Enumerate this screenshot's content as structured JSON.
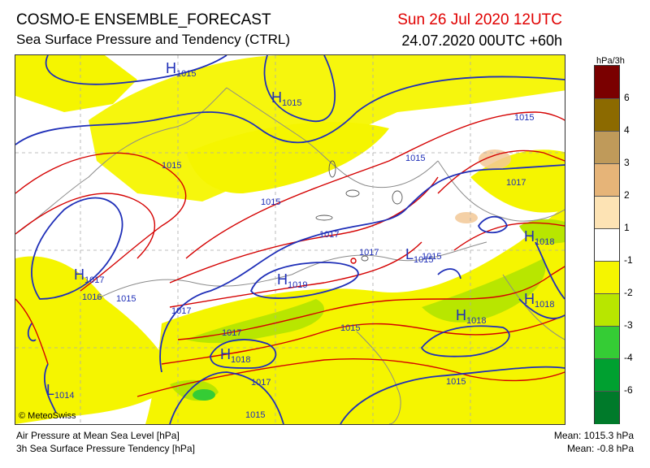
{
  "header": {
    "title": "COSMO-E ENSEMBLE_FORECAST",
    "subtitle": "Sea Surface Pressure and Tendency (CTRL)",
    "valid_time": "Sun 26 Jul 2020 12UTC",
    "run_time": "24.07.2020 00UTC +60h"
  },
  "legend": {
    "unit": "hPa/3h",
    "bins": [
      {
        "label": "6",
        "color": "#7a0000"
      },
      {
        "label": "4",
        "color": "#8c6a00"
      },
      {
        "label": "3",
        "color": "#bf9a5a"
      },
      {
        "label": "2",
        "color": "#e6b478"
      },
      {
        "label": "1",
        "color": "#fde3b4"
      },
      {
        "label": "-1",
        "color": "#ffffff"
      },
      {
        "label": "-2",
        "color": "#f5f500"
      },
      {
        "label": "-3",
        "color": "#b8e600"
      },
      {
        "label": "-4",
        "color": "#35cc35"
      },
      {
        "label": "-6",
        "color": "#00a030"
      },
      {
        "label": "",
        "color": "#007a2a"
      }
    ]
  },
  "map": {
    "copyright": "© MeteoSwiss",
    "labels": [
      {
        "text": "H",
        "sub": "1015",
        "color": "#1f2fb8"
      },
      {
        "text": "H",
        "sub": "1015",
        "color": "#1f2fb8"
      },
      {
        "text": "H",
        "sub": "1017",
        "color": "#1f2fb8"
      },
      {
        "text": "H",
        "sub": "1019",
        "color": "#1f2fb8"
      },
      {
        "text": "H",
        "sub": "1018",
        "color": "#1f2fb8"
      },
      {
        "text": "H",
        "sub": "1018",
        "color": "#1f2fb8"
      },
      {
        "text": "H",
        "sub": "1018",
        "color": "#1f2fb8"
      },
      {
        "text": "H",
        "sub": "1018",
        "color": "#1f2fb8"
      },
      {
        "text": "L",
        "sub": "1014",
        "color": "#1f2fb8"
      },
      {
        "text": "L",
        "sub": "1015",
        "color": "#1f2fb8"
      }
    ],
    "isobar_labels": [
      "1015",
      "1015",
      "1015",
      "1017",
      "1016",
      "1015",
      "1017",
      "1017",
      "1017",
      "1017",
      "1015",
      "1015",
      "1017",
      "1015",
      "1015",
      "1015"
    ]
  },
  "footer": {
    "line1": "Air Pressure at Mean Sea Level [hPa]",
    "line2": "3h Sea Surface Pressure Tendency [hPa]",
    "mean1": "Mean: 1015.3 hPa",
    "mean2": "Mean:   -0.8 hPa"
  },
  "colors": {
    "isobar_blue": "#1f2fb8",
    "isobar_red": "#d40000",
    "fill_yellow": "#f5f500",
    "fill_green": "#b8e600"
  }
}
